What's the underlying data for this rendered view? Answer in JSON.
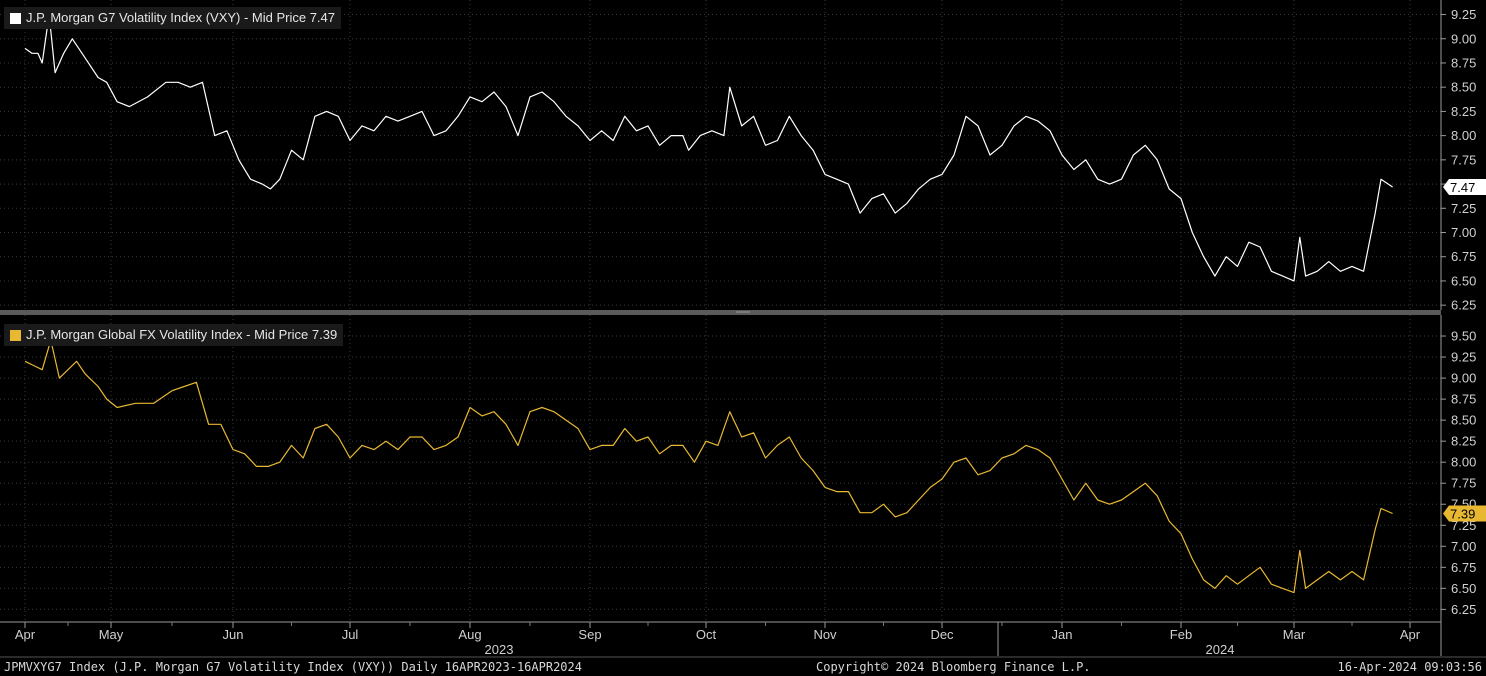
{
  "colors": {
    "background": "#000000",
    "grid": "#3a3a3a",
    "top_series": "#ffffff",
    "bottom_series": "#e8b833"
  },
  "top_panel": {
    "legend": "J.P. Morgan G7 Volatility Index (VXY) - Mid Price 7.47",
    "last_value_label": "7.47"
  },
  "bottom_panel": {
    "legend": "J.P. Morgan Global FX Volatility Index - Mid Price 7.39",
    "last_value_label": "7.39"
  },
  "footer": {
    "left": "JPMVXYG7 Index (J.P. Morgan G7 Volatility Index (VXY))  Daily 16APR2023-16APR2024",
    "center": "Copyright© 2024 Bloomberg Finance L.P.",
    "right": "16-Apr-2024 09:03:56"
  },
  "chart_data": [
    {
      "type": "line",
      "series": [
        {
          "name": "J.P. Morgan G7 Volatility Index (VXY) - Mid Price",
          "color": "#ffffff"
        }
      ],
      "x_tick_labels": [
        "Apr",
        "May",
        "Jun",
        "Jul",
        "Aug",
        "Sep",
        "Oct",
        "Nov",
        "Dec",
        "Jan",
        "Feb",
        "Mar",
        "Apr"
      ],
      "year_labels": [
        "2023",
        "2024"
      ],
      "y_ticks": [
        "9.25",
        "9.00",
        "8.75",
        "8.50",
        "8.25",
        "8.00",
        "7.75",
        "7.50",
        "7.25",
        "7.00",
        "6.75",
        "6.50",
        "6.25"
      ],
      "ylim": [
        6.2,
        9.4
      ],
      "points": [
        [
          0,
          8.9
        ],
        [
          0.08,
          8.85
        ],
        [
          0.15,
          8.85
        ],
        [
          0.2,
          8.75
        ],
        [
          0.28,
          9.25
        ],
        [
          0.35,
          8.65
        ],
        [
          0.45,
          8.85
        ],
        [
          0.55,
          9.0
        ],
        [
          0.7,
          8.8
        ],
        [
          0.85,
          8.6
        ],
        [
          0.95,
          8.55
        ],
        [
          1.05,
          8.35
        ],
        [
          1.15,
          8.3
        ],
        [
          1.3,
          8.4
        ],
        [
          1.45,
          8.55
        ],
        [
          1.55,
          8.55
        ],
        [
          1.65,
          8.5
        ],
        [
          1.75,
          8.55
        ],
        [
          1.85,
          8.0
        ],
        [
          1.95,
          8.05
        ],
        [
          2.05,
          7.75
        ],
        [
          2.15,
          7.55
        ],
        [
          2.25,
          7.5
        ],
        [
          2.32,
          7.45
        ],
        [
          2.4,
          7.55
        ],
        [
          2.5,
          7.85
        ],
        [
          2.6,
          7.75
        ],
        [
          2.7,
          8.2
        ],
        [
          2.8,
          8.25
        ],
        [
          2.9,
          8.2
        ],
        [
          3.0,
          7.95
        ],
        [
          3.1,
          8.1
        ],
        [
          3.2,
          8.05
        ],
        [
          3.3,
          8.2
        ],
        [
          3.4,
          8.15
        ],
        [
          3.5,
          8.2
        ],
        [
          3.6,
          8.25
        ],
        [
          3.7,
          8.0
        ],
        [
          3.8,
          8.05
        ],
        [
          3.9,
          8.2
        ],
        [
          4.0,
          8.4
        ],
        [
          4.1,
          8.35
        ],
        [
          4.2,
          8.45
        ],
        [
          4.3,
          8.3
        ],
        [
          4.4,
          8.0
        ],
        [
          4.5,
          8.4
        ],
        [
          4.6,
          8.45
        ],
        [
          4.7,
          8.35
        ],
        [
          4.8,
          8.2
        ],
        [
          4.9,
          8.1
        ],
        [
          5.0,
          7.95
        ],
        [
          5.1,
          8.05
        ],
        [
          5.2,
          7.95
        ],
        [
          5.3,
          8.2
        ],
        [
          5.4,
          8.05
        ],
        [
          5.5,
          8.1
        ],
        [
          5.6,
          7.9
        ],
        [
          5.7,
          8.0
        ],
        [
          5.8,
          8.0
        ],
        [
          5.85,
          7.85
        ],
        [
          5.95,
          8.0
        ],
        [
          6.05,
          8.05
        ],
        [
          6.15,
          8.0
        ],
        [
          6.2,
          8.5
        ],
        [
          6.3,
          8.1
        ],
        [
          6.4,
          8.2
        ],
        [
          6.5,
          7.9
        ],
        [
          6.6,
          7.95
        ],
        [
          6.7,
          8.2
        ],
        [
          6.8,
          8.0
        ],
        [
          6.9,
          7.85
        ],
        [
          7.0,
          7.6
        ],
        [
          7.1,
          7.55
        ],
        [
          7.2,
          7.5
        ],
        [
          7.3,
          7.2
        ],
        [
          7.4,
          7.35
        ],
        [
          7.5,
          7.4
        ],
        [
          7.6,
          7.2
        ],
        [
          7.7,
          7.3
        ],
        [
          7.8,
          7.45
        ],
        [
          7.9,
          7.55
        ],
        [
          8.0,
          7.6
        ],
        [
          8.1,
          7.8
        ],
        [
          8.2,
          8.2
        ],
        [
          8.3,
          8.1
        ],
        [
          8.4,
          7.8
        ],
        [
          8.5,
          7.9
        ],
        [
          8.6,
          8.1
        ],
        [
          8.7,
          8.2
        ],
        [
          8.8,
          8.15
        ],
        [
          8.9,
          8.05
        ],
        [
          9.0,
          7.8
        ],
        [
          9.1,
          7.65
        ],
        [
          9.2,
          7.75
        ],
        [
          9.3,
          7.55
        ],
        [
          9.4,
          7.5
        ],
        [
          9.5,
          7.55
        ],
        [
          9.6,
          7.8
        ],
        [
          9.7,
          7.9
        ],
        [
          9.8,
          7.75
        ],
        [
          9.9,
          7.45
        ],
        [
          10.0,
          7.35
        ],
        [
          10.1,
          7.0
        ],
        [
          10.2,
          6.75
        ],
        [
          10.3,
          6.55
        ],
        [
          10.4,
          6.75
        ],
        [
          10.5,
          6.65
        ],
        [
          10.6,
          6.9
        ],
        [
          10.7,
          6.85
        ],
        [
          10.8,
          6.6
        ],
        [
          10.9,
          6.55
        ],
        [
          11.0,
          6.5
        ],
        [
          11.05,
          6.95
        ],
        [
          11.1,
          6.55
        ],
        [
          11.2,
          6.6
        ],
        [
          11.3,
          6.7
        ],
        [
          11.4,
          6.6
        ],
        [
          11.5,
          6.65
        ],
        [
          11.6,
          6.6
        ],
        [
          11.7,
          7.2
        ],
        [
          11.75,
          7.55
        ],
        [
          11.85,
          7.47
        ]
      ]
    },
    {
      "type": "line",
      "series": [
        {
          "name": "J.P. Morgan Global FX Volatility Index - Mid Price",
          "color": "#e8b833"
        }
      ],
      "x_tick_labels": [
        "Apr",
        "May",
        "Jun",
        "Jul",
        "Aug",
        "Sep",
        "Oct",
        "Nov",
        "Dec",
        "Jan",
        "Feb",
        "Mar",
        "Apr"
      ],
      "y_ticks": [
        "9.50",
        "9.25",
        "9.00",
        "8.75",
        "8.50",
        "8.25",
        "8.00",
        "7.75",
        "7.50",
        "7.25",
        "7.00",
        "6.75",
        "6.50",
        "6.25"
      ],
      "ylim": [
        6.1,
        9.75
      ],
      "points": [
        [
          0,
          9.2
        ],
        [
          0.1,
          9.15
        ],
        [
          0.2,
          9.1
        ],
        [
          0.3,
          9.45
        ],
        [
          0.4,
          9.0
        ],
        [
          0.5,
          9.1
        ],
        [
          0.6,
          9.2
        ],
        [
          0.7,
          9.05
        ],
        [
          0.85,
          8.9
        ],
        [
          0.95,
          8.75
        ],
        [
          1.05,
          8.65
        ],
        [
          1.2,
          8.7
        ],
        [
          1.35,
          8.7
        ],
        [
          1.5,
          8.85
        ],
        [
          1.6,
          8.9
        ],
        [
          1.7,
          8.95
        ],
        [
          1.8,
          8.45
        ],
        [
          1.9,
          8.45
        ],
        [
          2.0,
          8.15
        ],
        [
          2.1,
          8.1
        ],
        [
          2.2,
          7.95
        ],
        [
          2.3,
          7.95
        ],
        [
          2.4,
          8.0
        ],
        [
          2.5,
          8.2
        ],
        [
          2.6,
          8.05
        ],
        [
          2.7,
          8.4
        ],
        [
          2.8,
          8.45
        ],
        [
          2.9,
          8.3
        ],
        [
          3.0,
          8.05
        ],
        [
          3.1,
          8.2
        ],
        [
          3.2,
          8.15
        ],
        [
          3.3,
          8.25
        ],
        [
          3.4,
          8.15
        ],
        [
          3.5,
          8.3
        ],
        [
          3.6,
          8.3
        ],
        [
          3.7,
          8.15
        ],
        [
          3.8,
          8.2
        ],
        [
          3.9,
          8.3
        ],
        [
          4.0,
          8.65
        ],
        [
          4.1,
          8.55
        ],
        [
          4.2,
          8.6
        ],
        [
          4.3,
          8.45
        ],
        [
          4.4,
          8.2
        ],
        [
          4.5,
          8.6
        ],
        [
          4.6,
          8.65
        ],
        [
          4.7,
          8.6
        ],
        [
          4.8,
          8.5
        ],
        [
          4.9,
          8.4
        ],
        [
          5.0,
          8.15
        ],
        [
          5.1,
          8.2
        ],
        [
          5.2,
          8.2
        ],
        [
          5.3,
          8.4
        ],
        [
          5.4,
          8.25
        ],
        [
          5.5,
          8.3
        ],
        [
          5.6,
          8.1
        ],
        [
          5.7,
          8.2
        ],
        [
          5.8,
          8.2
        ],
        [
          5.9,
          8.0
        ],
        [
          6.0,
          8.25
        ],
        [
          6.1,
          8.2
        ],
        [
          6.2,
          8.6
        ],
        [
          6.3,
          8.3
        ],
        [
          6.4,
          8.35
        ],
        [
          6.5,
          8.05
        ],
        [
          6.6,
          8.2
        ],
        [
          6.7,
          8.3
        ],
        [
          6.8,
          8.05
        ],
        [
          6.9,
          7.9
        ],
        [
          7.0,
          7.7
        ],
        [
          7.1,
          7.65
        ],
        [
          7.2,
          7.65
        ],
        [
          7.3,
          7.4
        ],
        [
          7.4,
          7.4
        ],
        [
          7.5,
          7.5
        ],
        [
          7.6,
          7.35
        ],
        [
          7.7,
          7.4
        ],
        [
          7.8,
          7.55
        ],
        [
          7.9,
          7.7
        ],
        [
          8.0,
          7.8
        ],
        [
          8.1,
          8.0
        ],
        [
          8.2,
          8.05
        ],
        [
          8.3,
          7.85
        ],
        [
          8.4,
          7.9
        ],
        [
          8.5,
          8.05
        ],
        [
          8.6,
          8.1
        ],
        [
          8.7,
          8.2
        ],
        [
          8.8,
          8.15
        ],
        [
          8.9,
          8.05
        ],
        [
          9.0,
          7.8
        ],
        [
          9.1,
          7.55
        ],
        [
          9.2,
          7.75
        ],
        [
          9.3,
          7.55
        ],
        [
          9.4,
          7.5
        ],
        [
          9.5,
          7.55
        ],
        [
          9.6,
          7.65
        ],
        [
          9.7,
          7.75
        ],
        [
          9.8,
          7.6
        ],
        [
          9.9,
          7.3
        ],
        [
          10.0,
          7.15
        ],
        [
          10.1,
          6.85
        ],
        [
          10.2,
          6.6
        ],
        [
          10.3,
          6.5
        ],
        [
          10.4,
          6.65
        ],
        [
          10.5,
          6.55
        ],
        [
          10.6,
          6.65
        ],
        [
          10.7,
          6.75
        ],
        [
          10.8,
          6.55
        ],
        [
          10.9,
          6.5
        ],
        [
          11.0,
          6.45
        ],
        [
          11.05,
          6.95
        ],
        [
          11.1,
          6.5
        ],
        [
          11.2,
          6.6
        ],
        [
          11.3,
          6.7
        ],
        [
          11.4,
          6.6
        ],
        [
          11.5,
          6.7
        ],
        [
          11.6,
          6.6
        ],
        [
          11.7,
          7.2
        ],
        [
          11.75,
          7.45
        ],
        [
          11.85,
          7.39
        ]
      ]
    }
  ]
}
